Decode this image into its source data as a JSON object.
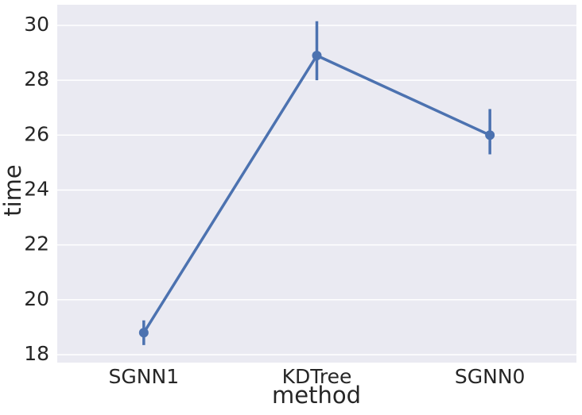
{
  "chart_data": {
    "type": "point",
    "x_label": "method",
    "y_label": "time",
    "categories": [
      "SGNN1",
      "KDTree",
      "SGNN0"
    ],
    "series": [
      {
        "color": "#4c72b0",
        "values": [
          18.8,
          28.9,
          26.0
        ],
        "ci_low": [
          18.35,
          28.0,
          25.3
        ],
        "ci_high": [
          19.25,
          30.15,
          26.95
        ]
      }
    ],
    "ylim": [
      17.71,
      30.75
    ],
    "yticks": [
      18,
      20,
      22,
      24,
      26,
      28,
      30
    ],
    "grid": true,
    "background": "#eaeaf2"
  }
}
